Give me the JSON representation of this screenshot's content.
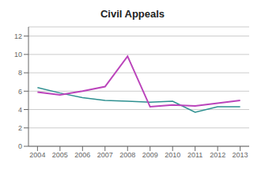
{
  "chart_data": {
    "type": "line",
    "title": "Civil Appeals",
    "x": [
      2004,
      2005,
      2006,
      2007,
      2008,
      2009,
      2010,
      2011,
      2012,
      2013
    ],
    "series": [
      {
        "color": "#2E9090",
        "values": [
          6.4,
          5.8,
          5.3,
          5.0,
          4.9,
          4.8,
          4.9,
          3.7,
          4.3,
          4.3
        ]
      },
      {
        "color": "#BB44BB",
        "values": [
          5.9,
          5.6,
          6.0,
          6.5,
          9.8,
          4.3,
          4.5,
          4.4,
          4.7,
          5.0
        ]
      }
    ],
    "xlim": [
      2003.6,
      2013.4
    ],
    "xticks": [
      2004,
      2005,
      2006,
      2007,
      2008,
      2009,
      2010,
      2011,
      2012,
      2013
    ],
    "ylim": [
      0,
      13
    ],
    "yticks": [
      0,
      2,
      4,
      6,
      8,
      10,
      12
    ],
    "grid": true
  }
}
